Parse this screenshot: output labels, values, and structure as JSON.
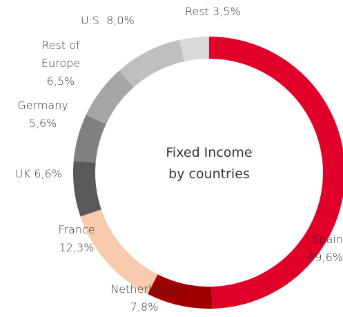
{
  "chart_data": {
    "type": "donut",
    "center_label": [
      "Fixed Income",
      "by countries"
    ],
    "categories": [
      "Spain",
      "Netherlands",
      "France",
      "UK",
      "Germany",
      "Rest of Europe",
      "U.S.",
      "Rest"
    ],
    "values": [
      49.6,
      7.8,
      12.3,
      6.6,
      5.6,
      6.5,
      8.0,
      3.5
    ],
    "value_labels": [
      "49,6%",
      "7,8%",
      "12,3%",
      "6,6%",
      "5,6%",
      "6,5%",
      "8,0%",
      "3,5%"
    ],
    "colors": [
      "#e0002a",
      "#a00000",
      "#f8cbad",
      "#595959",
      "#808080",
      "#a6a6a6",
      "#bfbfbf",
      "#d9d9d9"
    ]
  }
}
